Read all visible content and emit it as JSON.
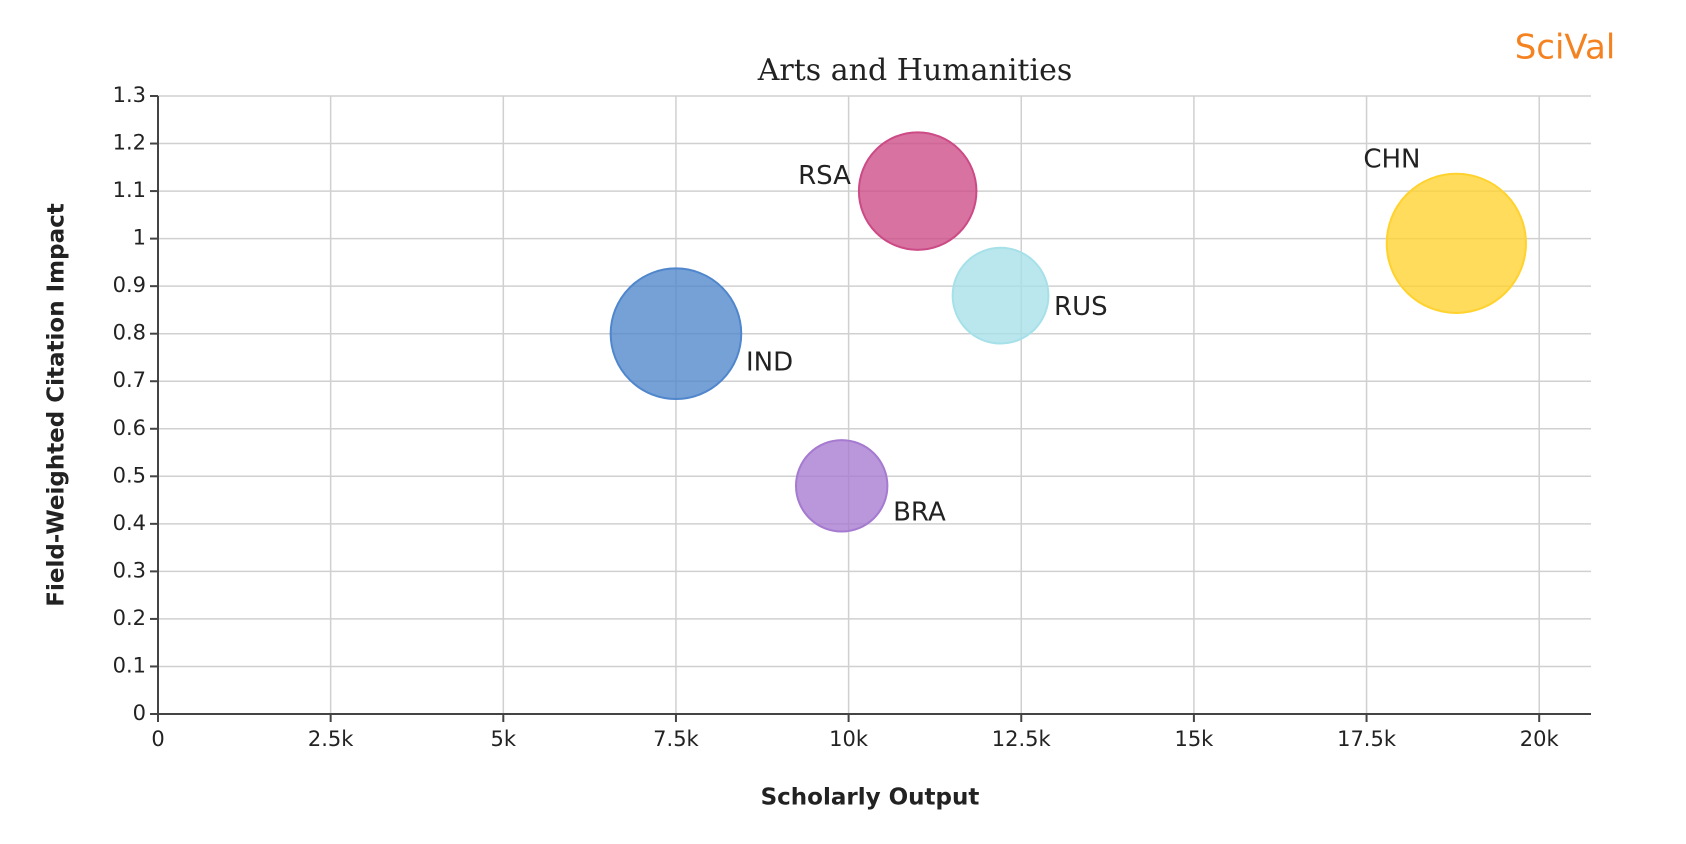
{
  "chart_data": {
    "type": "bubble",
    "title": "Arts and Humanities",
    "watermark": "SciVal",
    "x_label": "Scholarly Output",
    "y_label": "Field-Weighted Citation Impact",
    "series": [
      {
        "name": "IND",
        "color": "#4f86cc",
        "x": [
          7500
        ],
        "values": [
          0.8
        ],
        "sizes": [
          3600
        ]
      },
      {
        "name": "BRA",
        "color": "#a57ad0",
        "x": [
          9900
        ],
        "values": [
          0.48
        ],
        "sizes": [
          1764
        ]
      },
      {
        "name": "RSA",
        "color": "#cc4a86",
        "x": [
          11000
        ],
        "values": [
          1.1
        ],
        "sizes": [
          2916
        ]
      },
      {
        "name": "RUS",
        "color": "#a6e0e8",
        "x": [
          12200
        ],
        "values": [
          0.88
        ],
        "sizes": [
          1936
        ]
      },
      {
        "name": "CHN",
        "color": "#ffd22e",
        "x": [
          18800
        ],
        "values": [
          0.99
        ],
        "sizes": [
          4096
        ]
      }
    ],
    "xlim": [
      0,
      20750
    ],
    "ylim": [
      0,
      1.3
    ],
    "xticks": [
      0,
      {
        "value": 2500,
        "label": "2.5k"
      },
      {
        "value": 5000,
        "label": "5k"
      },
      {
        "value": 7500,
        "label": "7.5k"
      },
      {
        "value": 10000,
        "label": "10k"
      },
      {
        "value": 12500,
        "label": "12.5k"
      },
      {
        "value": 15000,
        "label": "15k"
      },
      {
        "value": 17500,
        "label": "17.5k"
      },
      {
        "value": 20000,
        "label": "20k"
      }
    ],
    "yticks": [
      0,
      0.1,
      0.2,
      0.3,
      0.4,
      0.5,
      0.6,
      0.7,
      0.8,
      0.9,
      1,
      1.1,
      1.2,
      1.3
    ],
    "grid": true
  }
}
